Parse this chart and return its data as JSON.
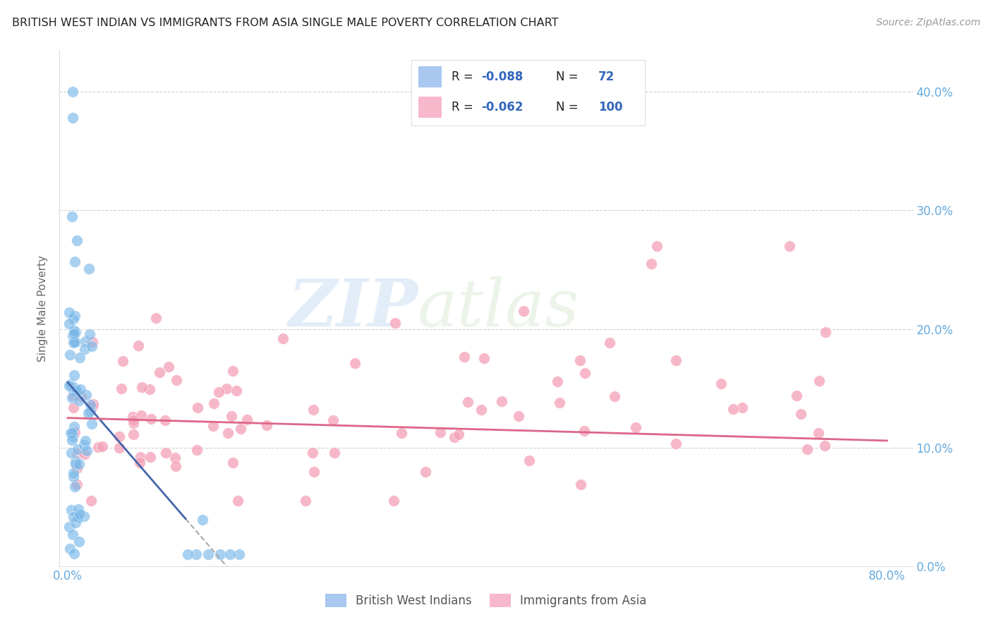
{
  "title": "BRITISH WEST INDIAN VS IMMIGRANTS FROM ASIA SINGLE MALE POVERTY CORRELATION CHART",
  "source": "Source: ZipAtlas.com",
  "ylabel": "Single Male Poverty",
  "watermark_zip": "ZIP",
  "watermark_atlas": "atlas",
  "legend1_color": "#a8c8f0",
  "legend2_color": "#f8b8cc",
  "legend1_label": "British West Indians",
  "legend2_label": "Immigrants from Asia",
  "R1": -0.088,
  "N1": 72,
  "R2": -0.062,
  "N2": 100,
  "blue_color": "#7ab8e8",
  "pink_color": "#f4a0b8",
  "trend_blue": "#4466aa",
  "trend_pink": "#dd6688",
  "trend_dashed": "#aaaaaa",
  "background": "#ffffff",
  "grid_color": "#cccccc",
  "axis_label_color": "#66aadd",
  "legend_text_color": "#3366bb",
  "N_text_color": "#222222"
}
